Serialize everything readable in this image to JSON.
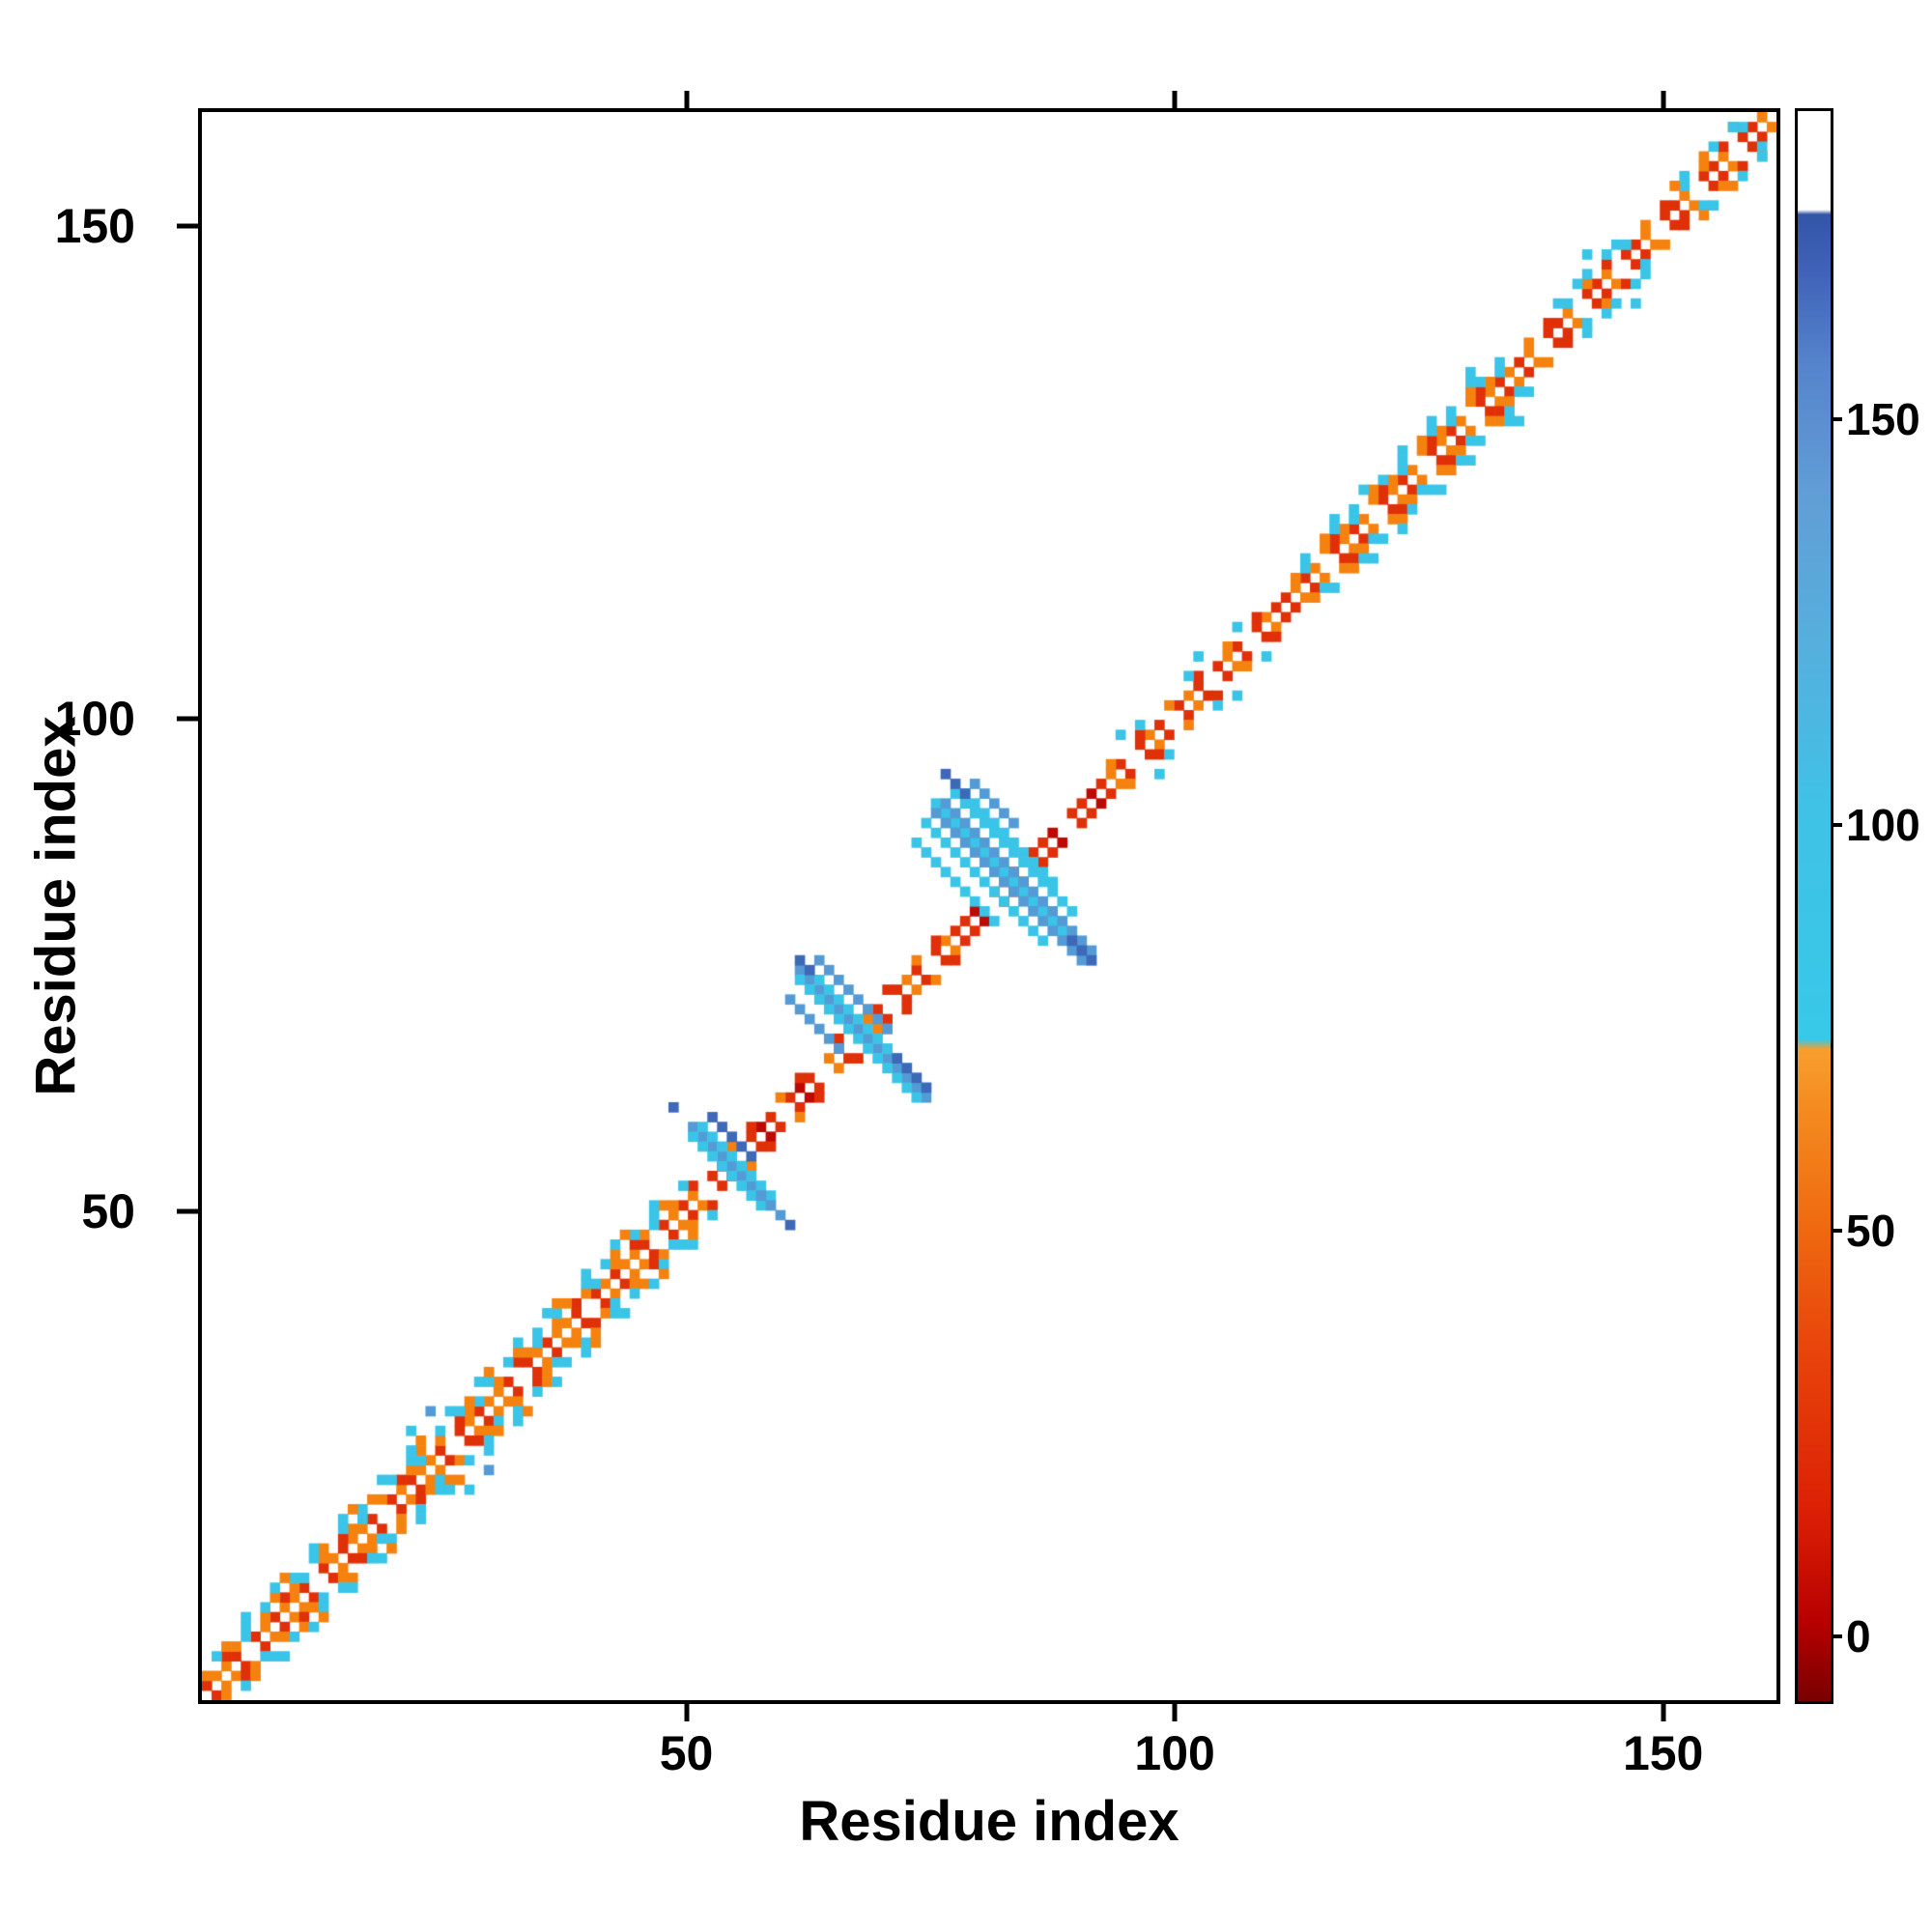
{
  "figure": {
    "background": "#ffffff",
    "frame_color": "#000000"
  },
  "chart_data": {
    "type": "heatmap",
    "title": "",
    "xlabel": "Residue index",
    "ylabel": "Residue index",
    "xlim": [
      0,
      162
    ],
    "ylim": [
      0,
      162
    ],
    "xticks": [
      50,
      100,
      150
    ],
    "yticks": [
      50,
      100,
      150
    ],
    "grid": false,
    "legend_position": "colorbar-right",
    "description": "Protein residue-residue contact map; contacts cluster along the main diagonal with wider helix-like bands (residues 1-52 and 112-135), narrow red/orange near-diagonal contacts elsewhere, and three anti-diagonal hairpin cross motifs centered near residues 55, 69 and 84 in cyan/blue.",
    "palette": {
      "red": "#e03008",
      "darkred": "#bc0a00",
      "orange": "#f5820f",
      "cyan": "#3ac4e8",
      "steel": "#549bd5",
      "blue": "#3e68b8",
      "white": "#ffffff"
    },
    "bands": [
      {
        "o": 1,
        "a": 1,
        "b": 51,
        "c": [
          "red",
          "orange",
          "orange",
          "red",
          null,
          "red",
          "orange"
        ]
      },
      {
        "o": 2,
        "a": 1,
        "b": 51,
        "c": [
          "orange",
          null,
          "red",
          "orange",
          "cyan",
          null
        ]
      },
      {
        "o": 3,
        "a": 2,
        "b": 50,
        "c": [
          "cyan",
          "orange",
          null,
          "cyan",
          null
        ]
      },
      {
        "o": 4,
        "a": 4,
        "b": 48,
        "c": [
          null,
          "cyan",
          null,
          null,
          "cyan",
          "orange",
          null
        ]
      },
      {
        "o": 1,
        "a": 53,
        "b": 64,
        "c": [
          "red",
          "darkred",
          "red",
          null
        ]
      },
      {
        "o": 2,
        "a": 54,
        "b": 63,
        "c": [
          null,
          "orange",
          null,
          "red",
          null
        ]
      },
      {
        "o": 1,
        "a": 65,
        "b": 78,
        "c": [
          "orange",
          "red",
          null,
          "red"
        ]
      },
      {
        "o": 2,
        "a": 66,
        "b": 77,
        "c": [
          "red",
          null,
          null,
          "orange",
          null
        ]
      },
      {
        "o": 1,
        "a": 79,
        "b": 93,
        "c": [
          "red",
          "darkred",
          null,
          "red"
        ]
      },
      {
        "o": 1,
        "a": 93,
        "b": 112,
        "c": [
          "red",
          "orange",
          "red",
          null
        ]
      },
      {
        "o": 2,
        "a": 94,
        "b": 111,
        "c": [
          "orange",
          null,
          null,
          "red",
          null,
          null
        ]
      },
      {
        "o": 3,
        "a": 96,
        "b": 107,
        "c": [
          null,
          "cyan",
          null,
          null,
          null
        ]
      },
      {
        "o": 1,
        "a": 112,
        "b": 136,
        "c": [
          "red",
          "orange",
          "red",
          "orange",
          null
        ]
      },
      {
        "o": 2,
        "a": 113,
        "b": 135,
        "c": [
          "orange",
          "cyan",
          null,
          "orange",
          "red"
        ]
      },
      {
        "o": 3,
        "a": 114,
        "b": 134,
        "c": [
          "cyan",
          null,
          "orange",
          "cyan",
          null
        ]
      },
      {
        "o": 4,
        "a": 116,
        "b": 132,
        "c": [
          null,
          "cyan",
          null,
          null,
          "cyan",
          null,
          null
        ]
      },
      {
        "o": 1,
        "a": 136,
        "b": 161,
        "c": [
          "red",
          "orange",
          null,
          "red"
        ]
      },
      {
        "o": 2,
        "a": 137,
        "b": 160,
        "c": [
          "orange",
          null,
          "red",
          null,
          "cyan",
          null
        ]
      },
      {
        "o": 3,
        "a": 140,
        "b": 147,
        "c": [
          "cyan",
          null,
          "cyan"
        ]
      },
      {
        "o": 3,
        "a": 152,
        "b": 158,
        "c": [
          "orange",
          "cyan",
          null
        ]
      }
    ],
    "anti_runs": [
      {
        "x": 51,
        "y": 59,
        "n": 9,
        "c": "steel"
      },
      {
        "x": 52,
        "y": 59,
        "n": 8,
        "c": "cyan"
      },
      {
        "x": 51,
        "y": 58,
        "n": 8,
        "c": "cyan"
      },
      {
        "x": 53,
        "y": 60,
        "n": 5,
        "c": "blue"
      },
      {
        "x": 58,
        "y": 52,
        "n": 3,
        "c": "steel"
      },
      {
        "x": 62,
        "y": 75,
        "n": 14,
        "c": "steel"
      },
      {
        "x": 63,
        "y": 75,
        "n": 13,
        "c": "cyan"
      },
      {
        "x": 62,
        "y": 74,
        "n": 13,
        "c": "cyan"
      },
      {
        "x": 64,
        "y": 76,
        "n": 8,
        "c": "steel"
      },
      {
        "x": 61,
        "y": 72,
        "n": 6,
        "c": "steel"
      },
      {
        "x": 62,
        "y": 76,
        "n": 2,
        "c": "blue"
      },
      {
        "x": 72,
        "y": 66,
        "n": 4,
        "c": "blue"
      },
      {
        "x": 76,
        "y": 92,
        "n": 17,
        "c": "cyan"
      },
      {
        "x": 77,
        "y": 92,
        "n": 16,
        "c": "steel"
      },
      {
        "x": 76,
        "y": 91,
        "n": 16,
        "c": "steel"
      },
      {
        "x": 78,
        "y": 93,
        "n": 13,
        "c": "cyan"
      },
      {
        "x": 75,
        "y": 90,
        "n": 13,
        "c": "cyan"
      },
      {
        "x": 79,
        "y": 93,
        "n": 10,
        "c": "cyan"
      },
      {
        "x": 74,
        "y": 88,
        "n": 9,
        "c": "cyan"
      },
      {
        "x": 80,
        "y": 94,
        "n": 5,
        "c": "steel"
      },
      {
        "x": 77,
        "y": 95,
        "n": 3,
        "c": "blue"
      },
      {
        "x": 90,
        "y": 78,
        "n": 3,
        "c": "blue"
      }
    ],
    "dots": [
      {
        "x": 22,
        "y": 28,
        "c": "cyan"
      },
      {
        "x": 28,
        "y": 22,
        "c": "cyan"
      },
      {
        "x": 24,
        "y": 30,
        "c": "steel"
      },
      {
        "x": 30,
        "y": 24,
        "c": "steel"
      },
      {
        "x": 49,
        "y": 61,
        "c": "blue"
      },
      {
        "x": 61,
        "y": 49,
        "c": "blue"
      },
      {
        "x": 95,
        "y": 99,
        "c": "cyan"
      },
      {
        "x": 99,
        "y": 95,
        "c": "cyan"
      },
      {
        "x": 103,
        "y": 107,
        "c": "cyan"
      },
      {
        "x": 107,
        "y": 103,
        "c": "cyan"
      },
      {
        "x": 131,
        "y": 136,
        "c": "cyan"
      },
      {
        "x": 136,
        "y": 131,
        "c": "cyan"
      },
      {
        "x": 143,
        "y": 148,
        "c": "cyan"
      },
      {
        "x": 148,
        "y": 143,
        "c": "cyan"
      },
      {
        "x": 158,
        "y": 161,
        "c": "cyan"
      },
      {
        "x": 161,
        "y": 158,
        "c": "cyan"
      }
    ],
    "colorbar": {
      "ticks": [
        0,
        50,
        100,
        150
      ],
      "value_min": -8,
      "value_max": 188,
      "gradient": [
        {
          "pos": 0,
          "color": "#7a0000"
        },
        {
          "pos": 5,
          "color": "#b80000"
        },
        {
          "pos": 12,
          "color": "#dc2005"
        },
        {
          "pos": 22,
          "color": "#e8440b"
        },
        {
          "pos": 30,
          "color": "#ef6a10"
        },
        {
          "pos": 37,
          "color": "#f48a1f"
        },
        {
          "pos": 41,
          "color": "#f89e2e"
        },
        {
          "pos": 41.6,
          "color": "#38c8e8"
        },
        {
          "pos": 56,
          "color": "#3fc2e6"
        },
        {
          "pos": 66,
          "color": "#55b0de"
        },
        {
          "pos": 76,
          "color": "#619dd6"
        },
        {
          "pos": 84,
          "color": "#5584cc"
        },
        {
          "pos": 90,
          "color": "#3f62b8"
        },
        {
          "pos": 93.5,
          "color": "#3355a8"
        },
        {
          "pos": 93.8,
          "color": "#ffffff"
        },
        {
          "pos": 100,
          "color": "#ffffff"
        }
      ]
    }
  }
}
